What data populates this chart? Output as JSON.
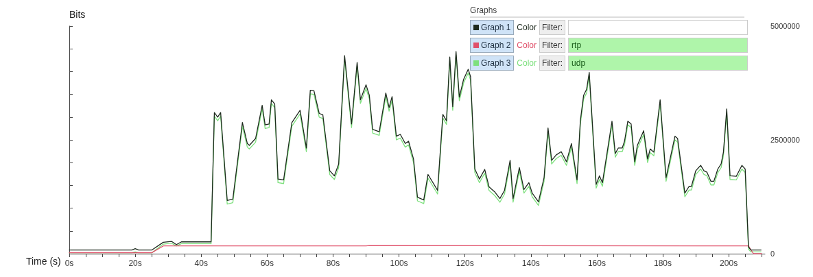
{
  "chart_data": {
    "type": "line",
    "xlabel": "Time (s)",
    "ylabel": "Bits",
    "legend_title": "Graphs",
    "legend": "top right",
    "grid": false,
    "marker": "none",
    "line_style": "solid",
    "annotations": [
      "Color",
      "Filter:",
      "rtp",
      "udp"
    ],
    "xlim": [
      0,
      211
    ],
    "ylim": [
      0,
      5000000
    ],
    "xticks": [
      {
        "value": 0,
        "label": "0s"
      },
      {
        "value": 5,
        "label": null
      },
      {
        "value": 10,
        "label": null
      },
      {
        "value": 15,
        "label": null
      },
      {
        "value": 20,
        "label": "20s"
      },
      {
        "value": 25,
        "label": null
      },
      {
        "value": 30,
        "label": null
      },
      {
        "value": 35,
        "label": null
      },
      {
        "value": 40,
        "label": "40s"
      },
      {
        "value": 45,
        "label": null
      },
      {
        "value": 50,
        "label": null
      },
      {
        "value": 55,
        "label": null
      },
      {
        "value": 60,
        "label": "60s"
      },
      {
        "value": 65,
        "label": null
      },
      {
        "value": 70,
        "label": null
      },
      {
        "value": 75,
        "label": null
      },
      {
        "value": 80,
        "label": "80s"
      },
      {
        "value": 85,
        "label": null
      },
      {
        "value": 90,
        "label": null
      },
      {
        "value": 95,
        "label": null
      },
      {
        "value": 100,
        "label": "100s"
      },
      {
        "value": 105,
        "label": null
      },
      {
        "value": 110,
        "label": null
      },
      {
        "value": 115,
        "label": null
      },
      {
        "value": 120,
        "label": "120s"
      },
      {
        "value": 125,
        "label": null
      },
      {
        "value": 130,
        "label": null
      },
      {
        "value": 135,
        "label": null
      },
      {
        "value": 140,
        "label": "140s"
      },
      {
        "value": 145,
        "label": null
      },
      {
        "value": 150,
        "label": null
      },
      {
        "value": 155,
        "label": null
      },
      {
        "value": 160,
        "label": "160s"
      },
      {
        "value": 165,
        "label": null
      },
      {
        "value": 170,
        "label": null
      },
      {
        "value": 175,
        "label": null
      },
      {
        "value": 180,
        "label": "180s"
      },
      {
        "value": 185,
        "label": null
      },
      {
        "value": 190,
        "label": null
      },
      {
        "value": 195,
        "label": null
      },
      {
        "value": 200,
        "label": "200s"
      },
      {
        "value": 205,
        "label": null
      },
      {
        "value": 210,
        "label": null
      }
    ],
    "yticks": [
      0,
      {
        "value": 500000,
        "label": null
      },
      {
        "value": 1000000,
        "label": null
      },
      {
        "value": 1500000,
        "label": null
      },
      {
        "value": 2000000,
        "label": null
      },
      2500000,
      {
        "value": 3000000,
        "label": null
      },
      {
        "value": 3500000,
        "label": null
      },
      {
        "value": 4000000,
        "label": null
      },
      {
        "value": 4500000,
        "label": null
      },
      5000000
    ],
    "series": [
      {
        "name": "Graph 1",
        "color": "#1e2a1e",
        "x": [
          0,
          19,
          20,
          21,
          25,
          28.5,
          31,
          32.5,
          34,
          43,
          44,
          45,
          45.9,
          47.9,
          49.6,
          52.5,
          54,
          54.6,
          56.5,
          58.5,
          59.4,
          60.6,
          61.3,
          62.3,
          63.3,
          65,
          67.5,
          70,
          71.9,
          73.1,
          74.2,
          75.8,
          76.9,
          79,
          80.4,
          81.7,
          83.5,
          85.6,
          87.3,
          88.3,
          90,
          91,
          92,
          94,
          96,
          97,
          97.9,
          99.2,
          100.4,
          101.9,
          102.9,
          104.4,
          105.6,
          107.5,
          108.8,
          111.7,
          113.3,
          114.4,
          115.4,
          116.3,
          117.3,
          118.3,
          119.6,
          121,
          121.7,
          123,
          124.4,
          126,
          127.3,
          129,
          130.6,
          132,
          133.7,
          134.6,
          136.5,
          137.9,
          139.4,
          140.4,
          142.3,
          144,
          145.2,
          146.3,
          147.7,
          149.2,
          150.8,
          152.3,
          154,
          155,
          156,
          156.9,
          157.7,
          159.8,
          160.8,
          161.7,
          164.6,
          165.6,
          166.5,
          167.7,
          168.4,
          169.4,
          170.4,
          171.5,
          172.3,
          174.2,
          175.4,
          176.2,
          177.3,
          179.2,
          181,
          183.7,
          184.5,
          186.7,
          188,
          188.7,
          190,
          191.5,
          192.5,
          193.4,
          194.6,
          195.5,
          196.7,
          197.7,
          198.4,
          199.4,
          200.4,
          202.3,
          204,
          205,
          206,
          206.7,
          209.8
        ],
        "values": [
          80000,
          80000,
          110000,
          80000,
          80000,
          250000,
          270000,
          200000,
          260000,
          260000,
          3100000,
          3000000,
          3100000,
          1170000,
          1200000,
          2880000,
          2420000,
          2380000,
          2530000,
          3260000,
          2830000,
          2850000,
          3380000,
          3290000,
          1640000,
          1620000,
          2880000,
          3150000,
          2320000,
          3590000,
          3580000,
          3080000,
          3050000,
          1820000,
          1710000,
          1970000,
          4350000,
          2850000,
          4200000,
          3380000,
          3710000,
          3480000,
          2730000,
          2680000,
          3530000,
          3210000,
          3450000,
          2580000,
          2620000,
          2420000,
          2470000,
          2080000,
          1240000,
          1180000,
          1740000,
          1390000,
          3060000,
          2920000,
          4320000,
          3230000,
          4440000,
          3440000,
          3830000,
          4050000,
          3890000,
          1860000,
          1640000,
          1850000,
          1470000,
          1360000,
          1210000,
          1390000,
          2050000,
          1210000,
          1890000,
          1410000,
          1560000,
          1330000,
          1140000,
          1670000,
          2760000,
          2050000,
          2170000,
          2240000,
          2020000,
          2420000,
          1620000,
          2920000,
          3480000,
          3610000,
          3980000,
          1520000,
          1710000,
          1560000,
          2910000,
          2200000,
          2320000,
          2320000,
          2470000,
          2910000,
          2850000,
          2020000,
          2380000,
          2700000,
          2080000,
          2300000,
          2230000,
          3380000,
          1670000,
          2580000,
          2530000,
          1330000,
          1480000,
          1480000,
          1820000,
          1940000,
          1820000,
          1790000,
          1590000,
          1590000,
          1860000,
          1970000,
          2230000,
          3180000,
          1710000,
          1700000,
          1940000,
          1860000,
          150000,
          80000,
          80000
        ]
      },
      {
        "name": "Graph 2",
        "color": "#e0506a",
        "x": [
          0,
          25,
          28.5,
          90,
          91,
          206,
          207.5,
          210
        ],
        "values": [
          20000,
          20000,
          170000,
          170000,
          180000,
          170000,
          0,
          0
        ]
      },
      {
        "name": "Graph 3",
        "color": "#7ee07e",
        "x": [
          0,
          19,
          20,
          21,
          25,
          28.5,
          31,
          32.5,
          34,
          43,
          44,
          45,
          45.9,
          47.9,
          49.6,
          52.5,
          54,
          54.6,
          56.5,
          58.5,
          59.4,
          60.6,
          61.3,
          62.3,
          63.3,
          65,
          67.5,
          70,
          71.9,
          73.1,
          74.2,
          75.8,
          76.9,
          79,
          80.4,
          81.7,
          83.5,
          85.6,
          87.3,
          88.3,
          90,
          91,
          92,
          94,
          96,
          97,
          97.9,
          99.2,
          100.4,
          101.9,
          102.9,
          104.4,
          105.6,
          107.5,
          108.8,
          111.7,
          113.3,
          114.4,
          115.4,
          116.3,
          117.3,
          118.3,
          119.6,
          121,
          121.7,
          123,
          124.4,
          126,
          127.3,
          129,
          130.6,
          132,
          133.7,
          134.6,
          136.5,
          137.9,
          139.4,
          140.4,
          142.3,
          144,
          145.2,
          146.3,
          147.7,
          149.2,
          150.8,
          152.3,
          154,
          155,
          156,
          156.9,
          157.7,
          159.8,
          160.8,
          161.7,
          164.6,
          165.6,
          166.5,
          167.7,
          168.4,
          169.4,
          170.4,
          171.5,
          172.3,
          174.2,
          175.4,
          176.2,
          177.3,
          179.2,
          181,
          183.7,
          184.5,
          186.7,
          188,
          188.7,
          190,
          191.5,
          192.5,
          193.4,
          194.6,
          195.5,
          196.7,
          197.7,
          198.4,
          199.4,
          200.4,
          202.3,
          204,
          205,
          206,
          206.7,
          209.8
        ],
        "values": [
          20000,
          20000,
          40000,
          20000,
          20000,
          210000,
          230000,
          170000,
          220000,
          220000,
          3020000,
          2920000,
          3020000,
          1090000,
          1120000,
          2800000,
          2340000,
          2300000,
          2450000,
          3180000,
          2750000,
          2770000,
          3300000,
          3210000,
          1560000,
          1540000,
          2800000,
          3070000,
          2240000,
          3510000,
          3500000,
          3000000,
          2970000,
          1740000,
          1630000,
          1890000,
          4270000,
          2770000,
          4120000,
          3300000,
          3630000,
          3400000,
          2650000,
          2600000,
          3450000,
          3130000,
          3370000,
          2500000,
          2540000,
          2340000,
          2390000,
          2000000,
          1160000,
          1100000,
          1660000,
          1310000,
          2980000,
          2840000,
          4240000,
          3150000,
          4360000,
          3360000,
          3750000,
          3970000,
          3810000,
          1780000,
          1560000,
          1770000,
          1390000,
          1280000,
          1130000,
          1310000,
          1970000,
          1130000,
          1810000,
          1330000,
          1480000,
          1250000,
          1060000,
          1590000,
          2680000,
          1970000,
          2090000,
          2160000,
          1940000,
          2340000,
          1540000,
          2840000,
          3400000,
          3530000,
          3900000,
          1440000,
          1630000,
          1480000,
          2830000,
          2120000,
          2240000,
          2240000,
          2390000,
          2830000,
          2770000,
          1940000,
          2300000,
          2620000,
          2000000,
          2220000,
          2150000,
          3300000,
          1590000,
          2500000,
          2450000,
          1250000,
          1400000,
          1400000,
          1740000,
          1860000,
          1740000,
          1710000,
          1510000,
          1510000,
          1780000,
          1890000,
          2150000,
          3100000,
          1630000,
          1620000,
          1860000,
          1780000,
          100000,
          40000,
          40000
        ]
      }
    ]
  }
}
